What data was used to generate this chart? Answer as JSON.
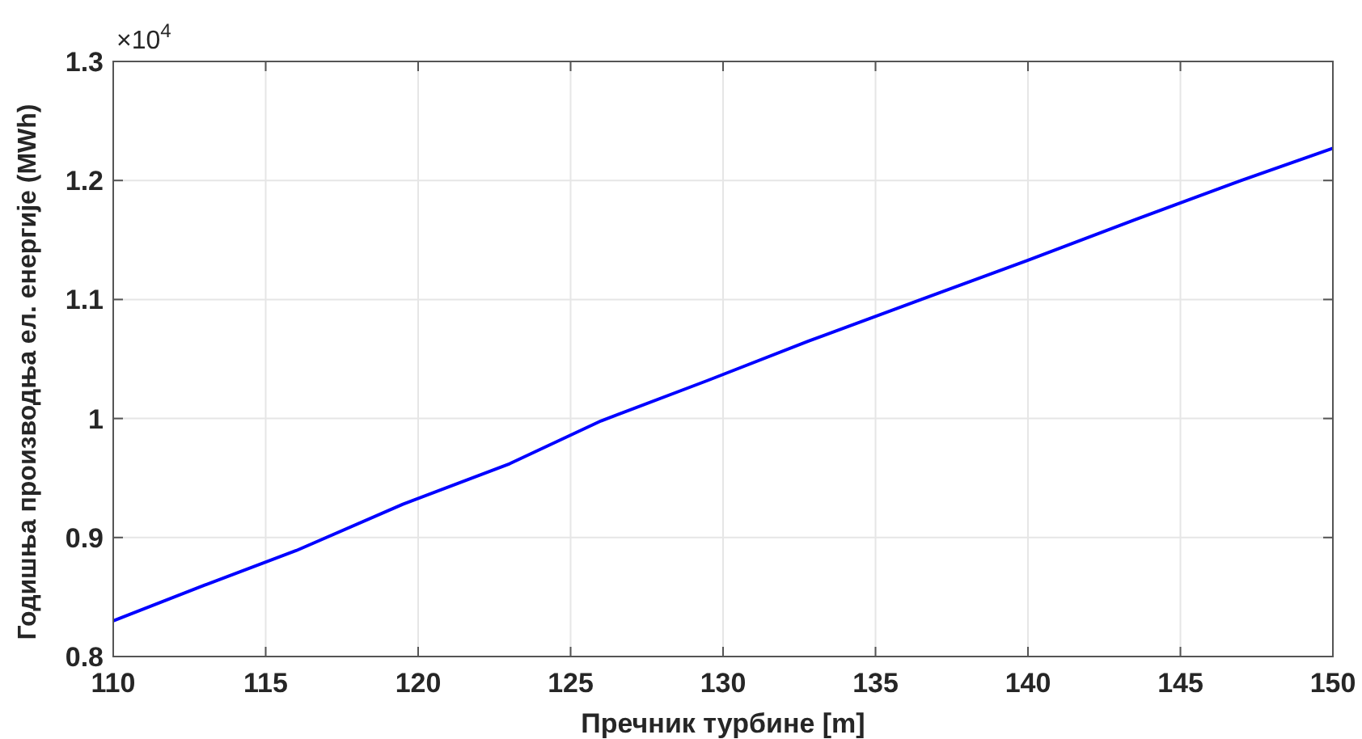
{
  "chart_data": {
    "type": "line",
    "xlabel": "Пречник турбине [m]",
    "ylabel": "Годишња производња ел. енергије (MWh)",
    "annotations": [
      "×10$^{4}$"
    ],
    "x": [
      110,
      113,
      116,
      119.5,
      123,
      126,
      129.5,
      132.8,
      136.5,
      140,
      143.5,
      147,
      150
    ],
    "series": [
      {
        "color": "#0000ff",
        "values": [
          0.83,
          0.86,
          0.889,
          0.928,
          0.962,
          0.998,
          1.032,
          1.065,
          1.1,
          1.133,
          1.167,
          1.2,
          1.227
        ]
      }
    ],
    "xlim": [
      110,
      150
    ],
    "xticks": [
      110,
      115,
      120,
      125,
      130,
      135,
      140,
      145,
      150
    ],
    "ylim": [
      0.8,
      1.3
    ],
    "yticks": [
      0.8,
      0.9,
      1,
      1.1,
      1.2,
      1.3
    ],
    "grid": true,
    "marker": "none",
    "line_style": "solid"
  }
}
